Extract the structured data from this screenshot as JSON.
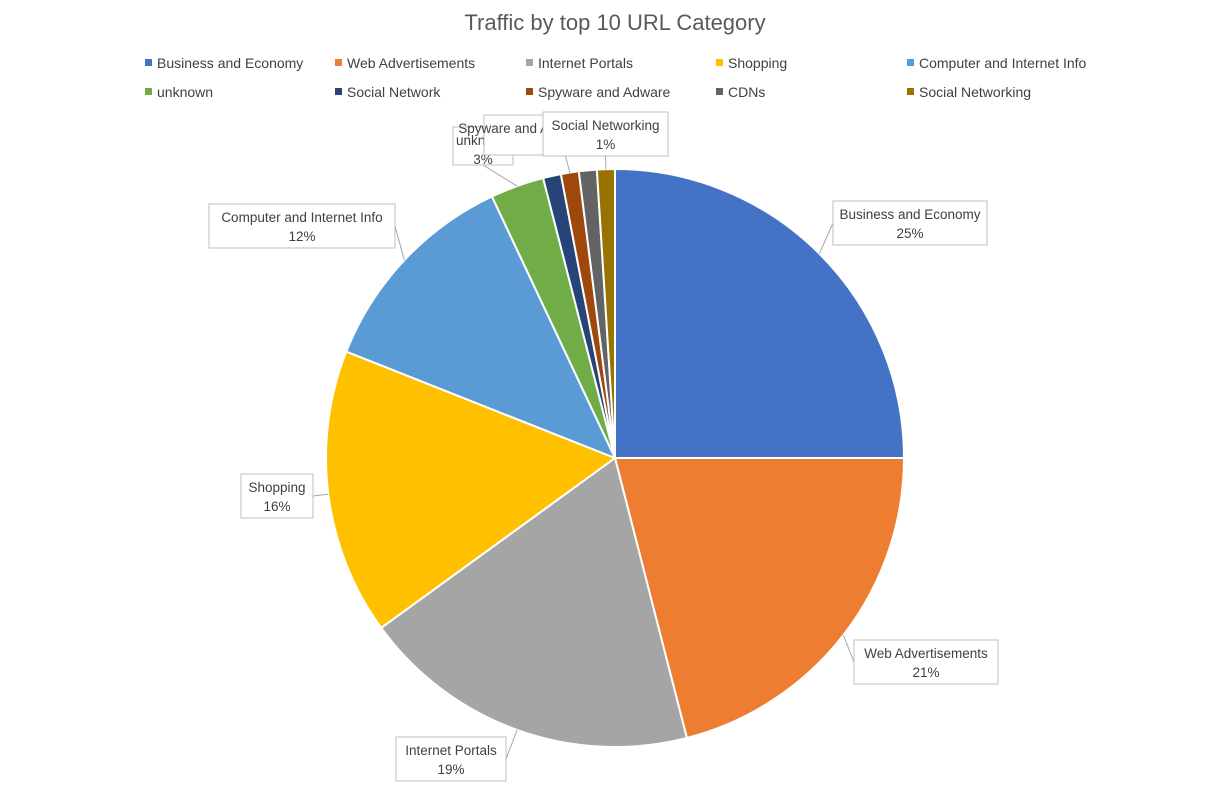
{
  "chart_data": {
    "type": "pie",
    "title": "Traffic by top 10 URL Category",
    "categories": [
      "Business and Economy",
      "Web Advertisements",
      "Internet Portals",
      "Shopping",
      "Computer and Internet Info",
      "unknown",
      "Social Network",
      "Spyware and Adware",
      "CDNs",
      "Social Networking"
    ],
    "values": [
      25,
      21,
      19,
      16,
      12,
      3,
      1,
      1,
      1,
      1
    ],
    "colors": [
      "#4472C4",
      "#ED7D31",
      "#A5A5A5",
      "#FFC000",
      "#5B9BD5",
      "#70AD47",
      "#264478",
      "#9E480E",
      "#636363",
      "#997300"
    ],
    "legend_position": "top",
    "data_labels": [
      {
        "category": "Business and Economy",
        "label": "25%"
      },
      {
        "category": "Web Advertisements",
        "label": "21%"
      },
      {
        "category": "Internet Portals",
        "label": "19%"
      },
      {
        "category": "Shopping",
        "label": "16%"
      },
      {
        "category": "Computer and Internet Info",
        "label": "12%"
      },
      {
        "category": "unknown",
        "label": "3%"
      },
      {
        "category": "Spyware and Adware",
        "label": ""
      },
      {
        "category": "Social Networking",
        "label": "1%"
      }
    ]
  }
}
